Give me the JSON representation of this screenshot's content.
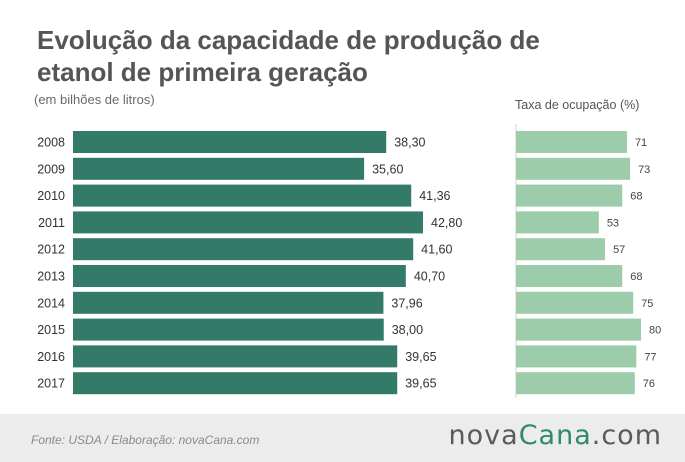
{
  "title": "Evolução da capacidade de produção de etanol de primeira geração",
  "subtitle": "(em bilhões de litros)",
  "footer": {
    "source": "Fonte:  USDA / Elaboração:  novaCana.com",
    "brand_main": "nova",
    "brand_accent": "Cana",
    "brand_suffix": ".com"
  },
  "colors": {
    "capacity_bar": "#347a69",
    "occupancy_bar": "#9ccca9",
    "divider": "#cfcfcf",
    "brand_accent": "#2e8b6a"
  },
  "chart_data": [
    {
      "type": "bar",
      "orientation": "horizontal",
      "title": "",
      "categories": [
        "2008",
        "2009",
        "2010",
        "2011",
        "2012",
        "2013",
        "2014",
        "2015",
        "2016",
        "2017"
      ],
      "values": [
        38.3,
        35.6,
        41.36,
        42.8,
        41.6,
        40.7,
        37.96,
        38.0,
        39.65,
        39.65
      ],
      "labels": [
        "38,30",
        "35,60",
        "41,36",
        "42,80",
        "41,60",
        "40,70",
        "37,96",
        "38,00",
        "39,65",
        "39,65"
      ],
      "xlim": [
        0,
        50
      ],
      "grid": false
    },
    {
      "type": "bar",
      "orientation": "horizontal",
      "title": "Taxa de ocupação (%)",
      "categories": [
        "2008",
        "2009",
        "2010",
        "2011",
        "2012",
        "2013",
        "2014",
        "2015",
        "2016",
        "2017"
      ],
      "values": [
        71,
        73,
        68,
        53,
        57,
        68,
        75,
        80,
        77,
        76
      ],
      "labels": [
        "71",
        "73",
        "68",
        "53",
        "57",
        "68",
        "75",
        "80",
        "77",
        "76"
      ],
      "xlim": [
        0,
        100
      ],
      "grid": false
    }
  ]
}
